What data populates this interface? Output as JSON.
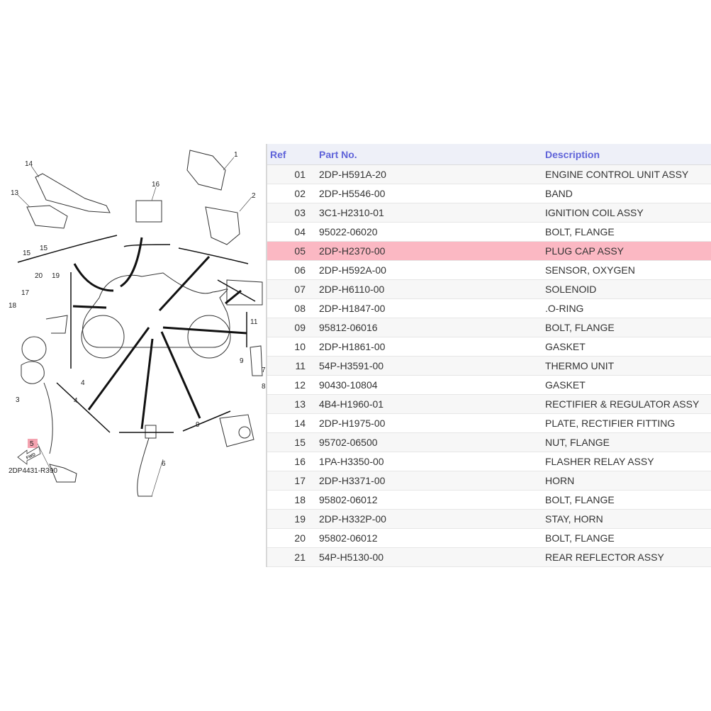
{
  "diagram": {
    "code": "2DP4431-R390",
    "fwd_label": "FWD",
    "highlighted_ref": "5",
    "callouts": [
      "1",
      "2",
      "14",
      "13",
      "16",
      "15",
      "15",
      "20",
      "19",
      "17",
      "18",
      "11",
      "9",
      "7",
      "8",
      "9",
      "3",
      "4",
      "4",
      "5",
      "6"
    ],
    "highlight_color": "#f4a3b0"
  },
  "table": {
    "headers": {
      "ref": "Ref",
      "part_no": "Part No.",
      "description": "Description"
    },
    "header_color": "#5f63d9",
    "highlight_color": "#fbb8c3",
    "selected_ref": "05",
    "rows": [
      {
        "ref": "01",
        "part_no": "2DP-H591A-20",
        "description": "ENGINE CONTROL UNIT ASSY"
      },
      {
        "ref": "02",
        "part_no": "2DP-H5546-00",
        "description": "BAND"
      },
      {
        "ref": "03",
        "part_no": "3C1-H2310-01",
        "description": "IGNITION COIL ASSY"
      },
      {
        "ref": "04",
        "part_no": "95022-06020",
        "description": "BOLT, FLANGE"
      },
      {
        "ref": "05",
        "part_no": "2DP-H2370-00",
        "description": "PLUG CAP ASSY"
      },
      {
        "ref": "06",
        "part_no": "2DP-H592A-00",
        "description": "SENSOR, OXYGEN"
      },
      {
        "ref": "07",
        "part_no": "2DP-H6110-00",
        "description": "SOLENOID"
      },
      {
        "ref": "08",
        "part_no": "2DP-H1847-00",
        "description": ".O-RING"
      },
      {
        "ref": "09",
        "part_no": "95812-06016",
        "description": "BOLT, FLANGE"
      },
      {
        "ref": "10",
        "part_no": "2DP-H1861-00",
        "description": "GASKET"
      },
      {
        "ref": "11",
        "part_no": "54P-H3591-00",
        "description": "THERMO UNIT"
      },
      {
        "ref": "12",
        "part_no": "90430-10804",
        "description": "GASKET"
      },
      {
        "ref": "13",
        "part_no": "4B4-H1960-01",
        "description": "RECTIFIER & REGULATOR ASSY"
      },
      {
        "ref": "14",
        "part_no": "2DP-H1975-00",
        "description": "PLATE, RECTIFIER FITTING"
      },
      {
        "ref": "15",
        "part_no": "95702-06500",
        "description": "NUT, FLANGE"
      },
      {
        "ref": "16",
        "part_no": "1PA-H3350-00",
        "description": "FLASHER RELAY ASSY"
      },
      {
        "ref": "17",
        "part_no": "2DP-H3371-00",
        "description": "HORN"
      },
      {
        "ref": "18",
        "part_no": "95802-06012",
        "description": "BOLT, FLANGE"
      },
      {
        "ref": "19",
        "part_no": "2DP-H332P-00",
        "description": "STAY, HORN"
      },
      {
        "ref": "20",
        "part_no": "95802-06012",
        "description": "BOLT, FLANGE"
      },
      {
        "ref": "21",
        "part_no": "54P-H5130-00",
        "description": "REAR REFLECTOR ASSY"
      }
    ]
  }
}
